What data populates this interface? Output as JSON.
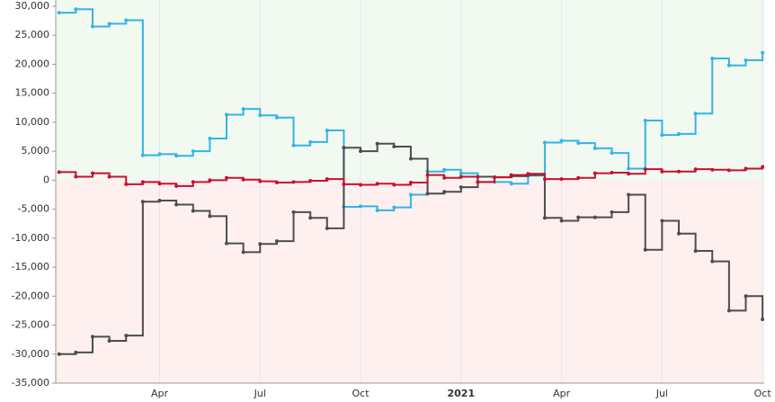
{
  "chart_data": {
    "type": "step-line",
    "xlim": [
      -0.1,
      21.05
    ],
    "xticks": [
      {
        "value": 3,
        "label": "Apr"
      },
      {
        "value": 6,
        "label": "Jul"
      },
      {
        "value": 9,
        "label": "Oct"
      },
      {
        "value": 12,
        "label": "2021"
      },
      {
        "value": 15,
        "label": "Apr"
      },
      {
        "value": 18,
        "label": "Jul"
      },
      {
        "value": 21,
        "label": "Oct"
      }
    ],
    "ylim": [
      -35000,
      30000
    ],
    "yticks": [
      {
        "value": -35000,
        "label": "-35,000"
      },
      {
        "value": -30000,
        "label": "-30,000"
      },
      {
        "value": -25000,
        "label": "-25,000"
      },
      {
        "value": -20000,
        "label": "-20,000"
      },
      {
        "value": -15000,
        "label": "-15,000"
      },
      {
        "value": -10000,
        "label": "-10,000"
      },
      {
        "value": -5000,
        "label": "-5,000"
      },
      0,
      {
        "value": 5000,
        "label": "5,000"
      },
      {
        "value": 10000,
        "label": "10,000"
      },
      {
        "value": 15000,
        "label": "15,000"
      },
      {
        "value": 20000,
        "label": "20,000"
      },
      {
        "value": 25000,
        "label": "25,000"
      },
      {
        "value": 30000,
        "label": "30,000"
      }
    ],
    "grid": true,
    "positive_fill": "#f1f9f1",
    "negative_fill": "#fff0f0",
    "x": [
      0,
      0.5,
      1,
      1.5,
      2,
      2.5,
      3,
      3.5,
      4,
      4.5,
      5,
      5.5,
      6,
      6.5,
      7,
      7.5,
      8,
      8.5,
      9,
      9.5,
      10,
      10.5,
      11,
      11.5,
      12,
      12.5,
      13,
      13.5,
      14,
      14.5,
      15,
      15.5,
      16,
      16.5,
      17,
      17.5,
      18,
      18.5,
      19,
      19.5,
      20,
      20.5,
      21
    ],
    "series": [
      {
        "color": "#35b3e6",
        "values": [
          28900,
          29500,
          26500,
          27000,
          27600,
          4300,
          4500,
          4200,
          5000,
          7200,
          11300,
          12300,
          11200,
          10800,
          6000,
          6600,
          8600,
          -4600,
          -4500,
          -5200,
          -4700,
          -2500,
          1500,
          1800,
          1200,
          -300,
          -300,
          -600,
          800,
          6500,
          6800,
          6400,
          5500,
          4700,
          2000,
          10300,
          7800,
          8000,
          11500,
          21000,
          19800,
          20700,
          22000
        ]
      },
      {
        "color": "#4d4d4d",
        "values": [
          -30000,
          -29700,
          -27000,
          -27700,
          -26800,
          -3700,
          -3500,
          -4200,
          -5300,
          -6200,
          -10900,
          -12400,
          -11000,
          -10500,
          -5500,
          -6500,
          -8300,
          5600,
          5000,
          6300,
          5800,
          3700,
          -2300,
          -2000,
          -1200,
          600,
          500,
          700,
          900,
          -6500,
          -7000,
          -6400,
          -6400,
          -5500,
          -2500,
          -12000,
          -7000,
          -9200,
          -12200,
          -14000,
          -22500,
          -20000,
          -24000
        ]
      },
      {
        "color": "#c8102e",
        "values": [
          1400,
          600,
          1200,
          600,
          -700,
          -300,
          -600,
          -1000,
          -300,
          0,
          400,
          100,
          -200,
          -400,
          -300,
          -100,
          200,
          -700,
          -800,
          -600,
          -800,
          -400,
          900,
          400,
          600,
          -300,
          500,
          900,
          1100,
          200,
          200,
          400,
          1200,
          1300,
          1100,
          1900,
          1500,
          1500,
          1900,
          1800,
          1700,
          2000,
          2300
        ]
      }
    ]
  }
}
